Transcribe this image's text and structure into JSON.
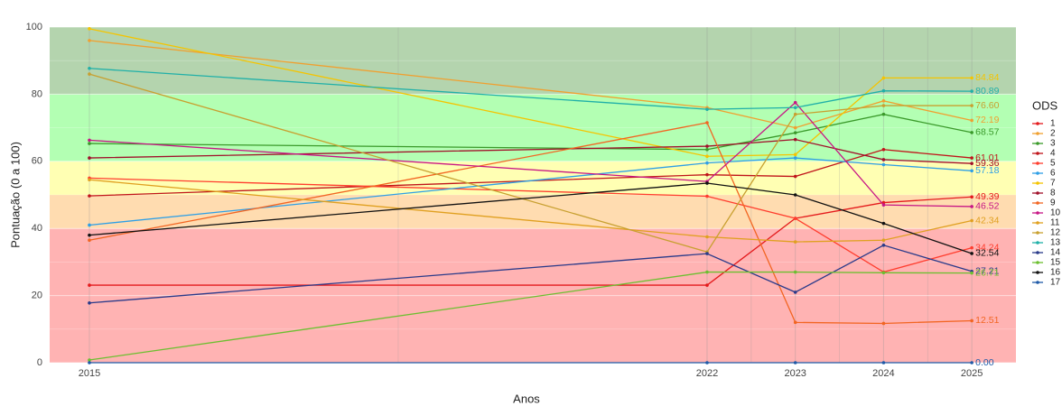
{
  "chart_data": {
    "type": "line",
    "x_label": "Anos",
    "y_label": "Pontuação (0 a 100)",
    "legend_title": "ODS",
    "x": [
      2015,
      2022,
      2023,
      2024,
      2025
    ],
    "xlim": [
      2014.55,
      2025.5
    ],
    "xticks": [
      2015,
      2022,
      2023,
      2024,
      2025
    ],
    "xminor": [
      2018.5,
      2022.5,
      2023.5,
      2024.5
    ],
    "ylim": [
      0,
      100
    ],
    "yticks": [
      0,
      20,
      40,
      60,
      80,
      100
    ],
    "yminor": [
      10,
      30,
      50,
      70,
      90
    ],
    "grid": true,
    "bands": [
      {
        "from": 0,
        "to": 40,
        "color": "#ffb3b3"
      },
      {
        "from": 40,
        "to": 50,
        "color": "#ffdcb0"
      },
      {
        "from": 50,
        "to": 60,
        "color": "#ffffb3"
      },
      {
        "from": 60,
        "to": 80,
        "color": "#b3ffb3"
      },
      {
        "from": 80,
        "to": 100,
        "color": "#b4d4ae"
      }
    ],
    "series": [
      {
        "name": "1",
        "color": "#e41a1c",
        "values": [
          23.1,
          23.1,
          43,
          47.7,
          49.39
        ],
        "value_labels": [
          null,
          null,
          null,
          null,
          "49.39"
        ]
      },
      {
        "name": "2",
        "color": "#f0a030",
        "values": [
          96,
          76,
          70,
          78,
          72.19
        ],
        "value_labels": [
          null,
          null,
          null,
          null,
          "72.19"
        ]
      },
      {
        "name": "3",
        "color": "#3a9a2a",
        "values": [
          65.3,
          63.5,
          68.5,
          74,
          68.57
        ],
        "value_labels": [
          null,
          null,
          null,
          null,
          "68.57"
        ]
      },
      {
        "name": "4",
        "color": "#c0141a",
        "values": [
          49.7,
          56,
          55.5,
          63.5,
          61.01
        ],
        "value_labels": [
          null,
          null,
          null,
          null,
          "61.01"
        ]
      },
      {
        "name": "5",
        "color": "#ff3d2e",
        "values": [
          55,
          49.6,
          43,
          27,
          34.24
        ],
        "value_labels": [
          null,
          null,
          null,
          null,
          "34.24"
        ]
      },
      {
        "name": "6",
        "color": "#2e9fe6",
        "values": [
          41,
          59.5,
          61,
          59,
          57.18
        ],
        "value_labels": [
          null,
          null,
          null,
          null,
          "57.18"
        ]
      },
      {
        "name": "7",
        "color": "#f5c400",
        "values": [
          99.5,
          61.5,
          62,
          84.84,
          84.84
        ],
        "value_labels": [
          null,
          null,
          null,
          null,
          "84.84"
        ]
      },
      {
        "name": "8",
        "color": "#a0102a",
        "values": [
          61,
          64.5,
          66.5,
          60.5,
          59.36
        ],
        "value_labels": [
          null,
          null,
          null,
          null,
          "59.36"
        ]
      },
      {
        "name": "9",
        "color": "#f26522",
        "values": [
          36.5,
          71.5,
          12,
          11.7,
          12.51
        ],
        "value_labels": [
          null,
          null,
          null,
          null,
          "12.51"
        ]
      },
      {
        "name": "10",
        "color": "#c71585",
        "values": [
          66.3,
          54,
          77.5,
          47,
          46.52
        ],
        "value_labels": [
          null,
          null,
          null,
          null,
          "46.52"
        ]
      },
      {
        "name": "11",
        "color": "#e0a020",
        "values": [
          54.5,
          37.5,
          36,
          36.5,
          42.34
        ],
        "value_labels": [
          null,
          null,
          null,
          null,
          "42.34"
        ]
      },
      {
        "name": "12",
        "color": "#c8a030",
        "values": [
          86,
          33,
          74,
          76.6,
          76.6
        ],
        "value_labels": [
          null,
          null,
          null,
          null,
          "76.60"
        ]
      },
      {
        "name": "13",
        "color": "#20b0a8",
        "values": [
          87.7,
          75.5,
          76,
          81,
          80.89
        ],
        "value_labels": [
          null,
          null,
          null,
          null,
          "80.89"
        ]
      },
      {
        "name": "14",
        "color": "#2a3a8a",
        "values": [
          17.8,
          32.5,
          21,
          35,
          27.21
        ],
        "value_labels": [
          null,
          null,
          null,
          null,
          "27.21"
        ]
      },
      {
        "name": "15",
        "color": "#6cbf30",
        "values": [
          0.8,
          27,
          27,
          26.8,
          26.71
        ],
        "value_labels": [
          null,
          null,
          null,
          null,
          "26.71"
        ]
      },
      {
        "name": "16",
        "color": "#111111",
        "values": [
          38,
          53.5,
          50,
          41.5,
          32.54
        ],
        "value_labels": [
          null,
          null,
          null,
          null,
          "32.54"
        ]
      },
      {
        "name": "17",
        "color": "#1f5aa8",
        "values": [
          0,
          0,
          0,
          0,
          0
        ],
        "value_labels": [
          null,
          null,
          null,
          null,
          "0.00"
        ]
      }
    ]
  }
}
